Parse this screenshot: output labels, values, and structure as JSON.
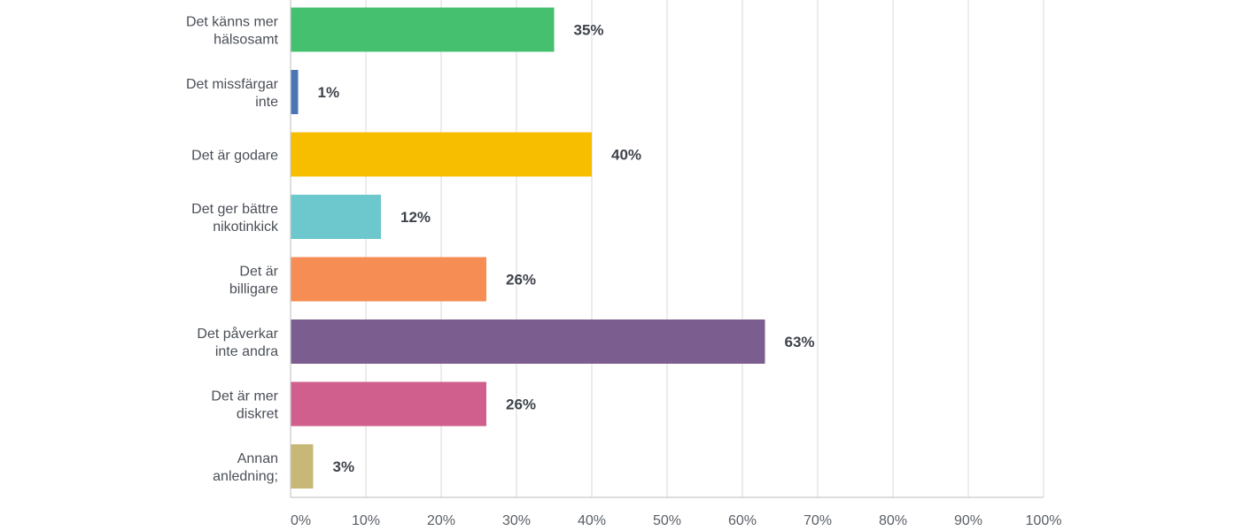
{
  "chart_data": {
    "type": "bar",
    "orientation": "horizontal",
    "categories": [
      [
        "Det känns mer",
        "hälsosamt"
      ],
      [
        "Det missfärgar",
        "inte"
      ],
      [
        "Det är godare"
      ],
      [
        "Det ger bättre",
        "nikotinkick"
      ],
      [
        "Det är",
        "billigare"
      ],
      [
        "Det påverkar",
        "inte andra"
      ],
      [
        "Det är mer",
        "diskret"
      ],
      [
        "Annan",
        "anledning;"
      ]
    ],
    "values": [
      35,
      1,
      40,
      12,
      26,
      63,
      26,
      3
    ],
    "value_labels": [
      "35%",
      "1%",
      "40%",
      "12%",
      "26%",
      "63%",
      "26%",
      "3%"
    ],
    "colors": [
      "#44c06f",
      "#4a76b5",
      "#f7be00",
      "#6cc8cc",
      "#f68d54",
      "#7b5e8f",
      "#d15f8d",
      "#c8b877"
    ],
    "xlim": [
      0,
      100
    ],
    "xticks": [
      0,
      10,
      20,
      30,
      40,
      50,
      60,
      70,
      80,
      90,
      100
    ],
    "xtick_labels": [
      "0%",
      "10%",
      "20%",
      "30%",
      "40%",
      "50%",
      "60%",
      "70%",
      "80%",
      "90%",
      "100%"
    ],
    "grid": true,
    "title": "",
    "xlabel": "",
    "ylabel": ""
  }
}
